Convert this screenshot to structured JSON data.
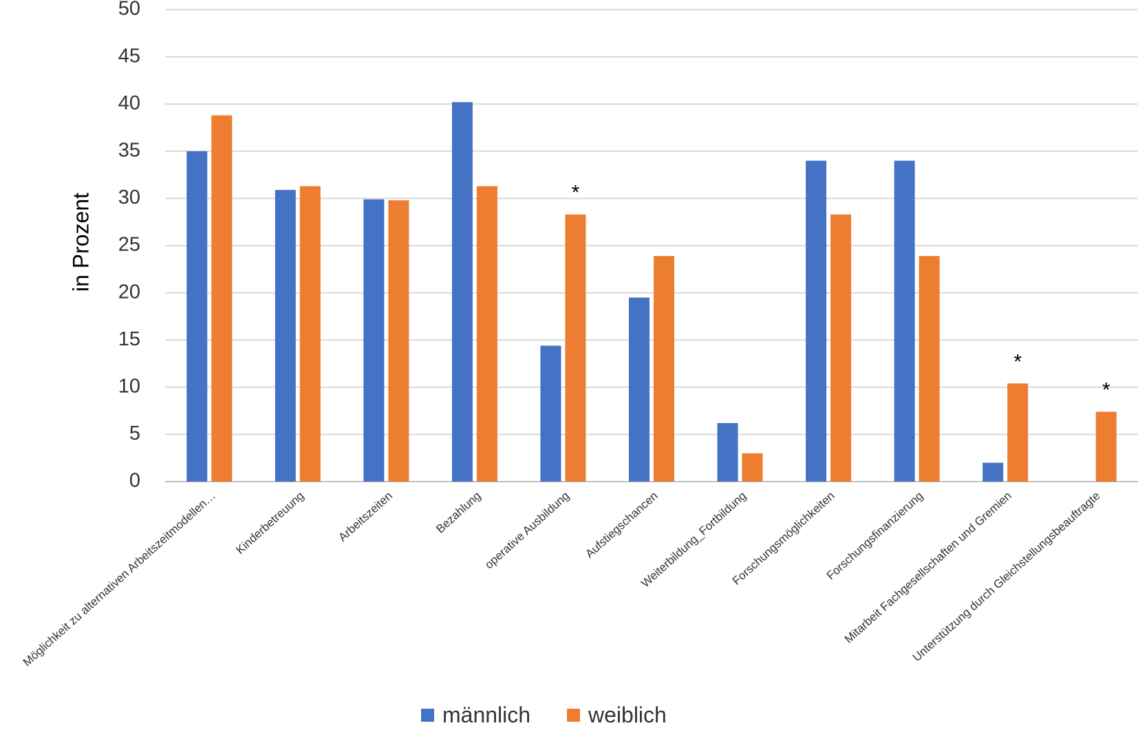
{
  "chart_data": {
    "type": "bar",
    "y_label": "in Prozent",
    "categories": [
      "Möglichkeit zu alternativen Arbeitszeitmodellen…",
      "Kinderbetreuung",
      "Arbeitszeiten",
      "Bezahlung",
      "operative Ausbildung",
      "Aufstiegschancen",
      "Weiterbildung_Fortbildung",
      "Forschungsmöglichkeiten",
      "Forschungsfinanzierung",
      "Mitarbeit Fachgesellschaften und Gremien",
      "Unterstützung durch Gleichstellungsbeauftragte"
    ],
    "series": [
      {
        "name": "männlich",
        "color": "#4472c4",
        "values": [
          35,
          30.9,
          29.9,
          40.2,
          14.4,
          19.5,
          6.2,
          34,
          34,
          2,
          0
        ]
      },
      {
        "name": "weiblich",
        "color": "#ed7d31",
        "values": [
          38.8,
          31.3,
          29.8,
          31.3,
          28.3,
          23.9,
          3,
          28.3,
          23.9,
          10.4,
          7.4
        ]
      }
    ],
    "markers": [
      null,
      null,
      null,
      null,
      "*",
      null,
      null,
      null,
      null,
      "*",
      "*"
    ],
    "ylim": [
      0,
      50
    ],
    "yticks": [
      0,
      5,
      10,
      15,
      20,
      25,
      30,
      35,
      40,
      45,
      50
    ],
    "grid": true,
    "legend": "bottom"
  }
}
